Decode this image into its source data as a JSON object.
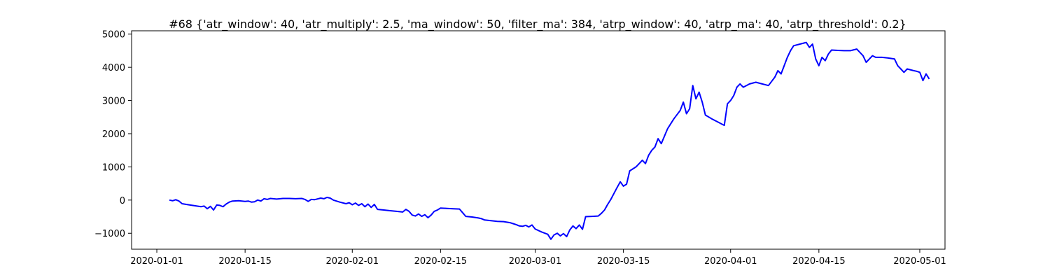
{
  "chart_data": {
    "type": "line",
    "title": "#68 {'atr_window': 40, 'atr_multiply': 2.5, 'ma_window': 50, 'filter_ma': 384, 'atrp_window': 40, 'atrp_ma': 40, 'atrp_threshold': 0.2}",
    "xlabel": "",
    "ylabel": "",
    "x_tick_labels": [
      "2020-01-01",
      "2020-01-15",
      "2020-02-01",
      "2020-02-15",
      "2020-03-01",
      "2020-03-15",
      "2020-04-01",
      "2020-04-15",
      "2020-05-01"
    ],
    "y_tick_labels": [
      "−1000",
      "0",
      "1000",
      "2000",
      "3000",
      "4000",
      "5000"
    ],
    "y_ticks": [
      -1000,
      0,
      1000,
      2000,
      3000,
      4000,
      5000
    ],
    "xlim": [
      "2019-12-28",
      "2020-05-05"
    ],
    "ylim": [
      -1480,
      5100
    ],
    "grid": false,
    "line_color": "#0000ff",
    "series": [
      {
        "points": [
          [
            "2020-01-03",
            0
          ],
          [
            "2020-01-03T12:00",
            -20
          ],
          [
            "2020-01-04",
            10
          ],
          [
            "2020-01-04T12:00",
            -30
          ],
          [
            "2020-01-05",
            -110
          ],
          [
            "2020-01-06",
            -140
          ],
          [
            "2020-01-07",
            -170
          ],
          [
            "2020-01-08",
            -200
          ],
          [
            "2020-01-08T12:00",
            -180
          ],
          [
            "2020-01-09",
            -260
          ],
          [
            "2020-01-09T12:00",
            -190
          ],
          [
            "2020-01-10",
            -300
          ],
          [
            "2020-01-10T12:00",
            -150
          ],
          [
            "2020-01-11",
            -160
          ],
          [
            "2020-01-11T12:00",
            -200
          ],
          [
            "2020-01-12",
            -120
          ],
          [
            "2020-01-12T12:00",
            -60
          ],
          [
            "2020-01-13",
            -30
          ],
          [
            "2020-01-14",
            -20
          ],
          [
            "2020-01-15",
            -40
          ],
          [
            "2020-01-15T12:00",
            -30
          ],
          [
            "2020-01-16",
            -60
          ],
          [
            "2020-01-16T12:00",
            -50
          ],
          [
            "2020-01-17",
            0
          ],
          [
            "2020-01-17T12:00",
            -30
          ],
          [
            "2020-01-18",
            40
          ],
          [
            "2020-01-18T12:00",
            20
          ],
          [
            "2020-01-19",
            50
          ],
          [
            "2020-01-20",
            30
          ],
          [
            "2020-01-21",
            50
          ],
          [
            "2020-01-22",
            50
          ],
          [
            "2020-01-23",
            40
          ],
          [
            "2020-01-24",
            50
          ],
          [
            "2020-01-24T12:00",
            20
          ],
          [
            "2020-01-25",
            -40
          ],
          [
            "2020-01-25T12:00",
            20
          ],
          [
            "2020-01-26",
            10
          ],
          [
            "2020-01-27",
            60
          ],
          [
            "2020-01-27T12:00",
            40
          ],
          [
            "2020-01-28",
            80
          ],
          [
            "2020-01-28T12:00",
            60
          ],
          [
            "2020-01-29",
            0
          ],
          [
            "2020-01-30",
            -60
          ],
          [
            "2020-01-31",
            -110
          ],
          [
            "2020-01-31T12:00",
            -80
          ],
          [
            "2020-02-01",
            -140
          ],
          [
            "2020-02-01T12:00",
            -90
          ],
          [
            "2020-02-02",
            -160
          ],
          [
            "2020-02-02T12:00",
            -110
          ],
          [
            "2020-02-03",
            -200
          ],
          [
            "2020-02-03T12:00",
            -120
          ],
          [
            "2020-02-04",
            -220
          ],
          [
            "2020-02-04T12:00",
            -130
          ],
          [
            "2020-02-05",
            -280
          ],
          [
            "2020-02-06",
            -300
          ],
          [
            "2020-02-07",
            -320
          ],
          [
            "2020-02-08",
            -340
          ],
          [
            "2020-02-09",
            -360
          ],
          [
            "2020-02-09T12:00",
            -280
          ],
          [
            "2020-02-10",
            -340
          ],
          [
            "2020-02-10T12:00",
            -450
          ],
          [
            "2020-02-11",
            -480
          ],
          [
            "2020-02-11T12:00",
            -420
          ],
          [
            "2020-02-12",
            -490
          ],
          [
            "2020-02-12T12:00",
            -440
          ],
          [
            "2020-02-13",
            -530
          ],
          [
            "2020-02-13T12:00",
            -450
          ],
          [
            "2020-02-14",
            -340
          ],
          [
            "2020-02-14T12:00",
            -300
          ],
          [
            "2020-02-15",
            -240
          ],
          [
            "2020-02-16",
            -250
          ],
          [
            "2020-02-17",
            -260
          ],
          [
            "2020-02-18",
            -270
          ],
          [
            "2020-02-18T12:00",
            -380
          ],
          [
            "2020-02-19",
            -490
          ],
          [
            "2020-02-20",
            -510
          ],
          [
            "2020-02-21",
            -540
          ],
          [
            "2020-02-21T12:00",
            -560
          ],
          [
            "2020-02-22",
            -600
          ],
          [
            "2020-02-23",
            -620
          ],
          [
            "2020-02-24",
            -640
          ],
          [
            "2020-02-25",
            -650
          ],
          [
            "2020-02-26",
            -680
          ],
          [
            "2020-02-26T12:00",
            -710
          ],
          [
            "2020-02-27",
            -740
          ],
          [
            "2020-02-27T12:00",
            -780
          ],
          [
            "2020-02-28",
            -790
          ],
          [
            "2020-02-28T12:00",
            -760
          ],
          [
            "2020-02-29",
            -810
          ],
          [
            "2020-02-29T12:00",
            -750
          ],
          [
            "2020-03-01",
            -870
          ],
          [
            "2020-03-02",
            -960
          ],
          [
            "2020-03-03",
            -1030
          ],
          [
            "2020-03-03T12:00",
            -1180
          ],
          [
            "2020-03-04",
            -1050
          ],
          [
            "2020-03-04T12:00",
            -1000
          ],
          [
            "2020-03-05",
            -1080
          ],
          [
            "2020-03-05T12:00",
            -1010
          ],
          [
            "2020-03-06",
            -1100
          ],
          [
            "2020-03-06T12:00",
            -900
          ],
          [
            "2020-03-07",
            -780
          ],
          [
            "2020-03-07T12:00",
            -860
          ],
          [
            "2020-03-08",
            -750
          ],
          [
            "2020-03-08T12:00",
            -880
          ],
          [
            "2020-03-09",
            -500
          ],
          [
            "2020-03-10",
            -490
          ],
          [
            "2020-03-11",
            -480
          ],
          [
            "2020-03-11T12:00",
            -400
          ],
          [
            "2020-03-12",
            -300
          ],
          [
            "2020-03-12T12:00",
            -130
          ],
          [
            "2020-03-13",
            20
          ],
          [
            "2020-03-13T12:00",
            200
          ],
          [
            "2020-03-14",
            380
          ],
          [
            "2020-03-14T12:00",
            550
          ],
          [
            "2020-03-15",
            420
          ],
          [
            "2020-03-15T12:00",
            480
          ],
          [
            "2020-03-16",
            880
          ],
          [
            "2020-03-17",
            1000
          ],
          [
            "2020-03-18",
            1200
          ],
          [
            "2020-03-18T12:00",
            1100
          ],
          [
            "2020-03-19",
            1350
          ],
          [
            "2020-03-19T12:00",
            1500
          ],
          [
            "2020-03-20",
            1600
          ],
          [
            "2020-03-20T12:00",
            1850
          ],
          [
            "2020-03-21",
            1700
          ],
          [
            "2020-03-22",
            2150
          ],
          [
            "2020-03-23",
            2450
          ],
          [
            "2020-03-24",
            2700
          ],
          [
            "2020-03-24T12:00",
            2950
          ],
          [
            "2020-03-25",
            2600
          ],
          [
            "2020-03-25T12:00",
            2750
          ],
          [
            "2020-03-26",
            3450
          ],
          [
            "2020-03-26T12:00",
            3050
          ],
          [
            "2020-03-27",
            3250
          ],
          [
            "2020-03-27T12:00",
            2950
          ],
          [
            "2020-03-28",
            2560
          ],
          [
            "2020-03-29",
            2450
          ],
          [
            "2020-03-30",
            2350
          ],
          [
            "2020-03-31",
            2250
          ],
          [
            "2020-03-31T12:00",
            2900
          ],
          [
            "2020-04-01",
            3000
          ],
          [
            "2020-04-01T12:00",
            3150
          ],
          [
            "2020-04-02",
            3400
          ],
          [
            "2020-04-02T12:00",
            3500
          ],
          [
            "2020-04-03",
            3400
          ],
          [
            "2020-04-04",
            3500
          ],
          [
            "2020-04-05",
            3550
          ],
          [
            "2020-04-06",
            3500
          ],
          [
            "2020-04-07",
            3450
          ],
          [
            "2020-04-08",
            3700
          ],
          [
            "2020-04-08T12:00",
            3900
          ],
          [
            "2020-04-09",
            3800
          ],
          [
            "2020-04-10",
            4300
          ],
          [
            "2020-04-10T12:00",
            4500
          ],
          [
            "2020-04-11",
            4650
          ],
          [
            "2020-04-12",
            4700
          ],
          [
            "2020-04-13",
            4750
          ],
          [
            "2020-04-13T12:00",
            4600
          ],
          [
            "2020-04-14",
            4700
          ],
          [
            "2020-04-14T12:00",
            4250
          ],
          [
            "2020-04-15",
            4050
          ],
          [
            "2020-04-15T12:00",
            4300
          ],
          [
            "2020-04-16",
            4200
          ],
          [
            "2020-04-16T12:00",
            4400
          ],
          [
            "2020-04-17",
            4520
          ],
          [
            "2020-04-18",
            4510
          ],
          [
            "2020-04-19",
            4500
          ],
          [
            "2020-04-20",
            4500
          ],
          [
            "2020-04-21",
            4550
          ],
          [
            "2020-04-21T12:00",
            4450
          ],
          [
            "2020-04-22",
            4350
          ],
          [
            "2020-04-22T12:00",
            4150
          ],
          [
            "2020-04-23",
            4250
          ],
          [
            "2020-04-23T12:00",
            4350
          ],
          [
            "2020-04-24",
            4300
          ],
          [
            "2020-04-25",
            4300
          ],
          [
            "2020-04-26",
            4280
          ],
          [
            "2020-04-27",
            4250
          ],
          [
            "2020-04-27T12:00",
            4050
          ],
          [
            "2020-04-28",
            3950
          ],
          [
            "2020-04-28T12:00",
            3850
          ],
          [
            "2020-04-29",
            3950
          ],
          [
            "2020-04-30",
            3900
          ],
          [
            "2020-04-30T12:00",
            3880
          ],
          [
            "2020-05-01",
            3850
          ],
          [
            "2020-05-01T12:00",
            3600
          ],
          [
            "2020-05-02",
            3800
          ],
          [
            "2020-05-02T12:00",
            3650
          ]
        ]
      }
    ]
  }
}
